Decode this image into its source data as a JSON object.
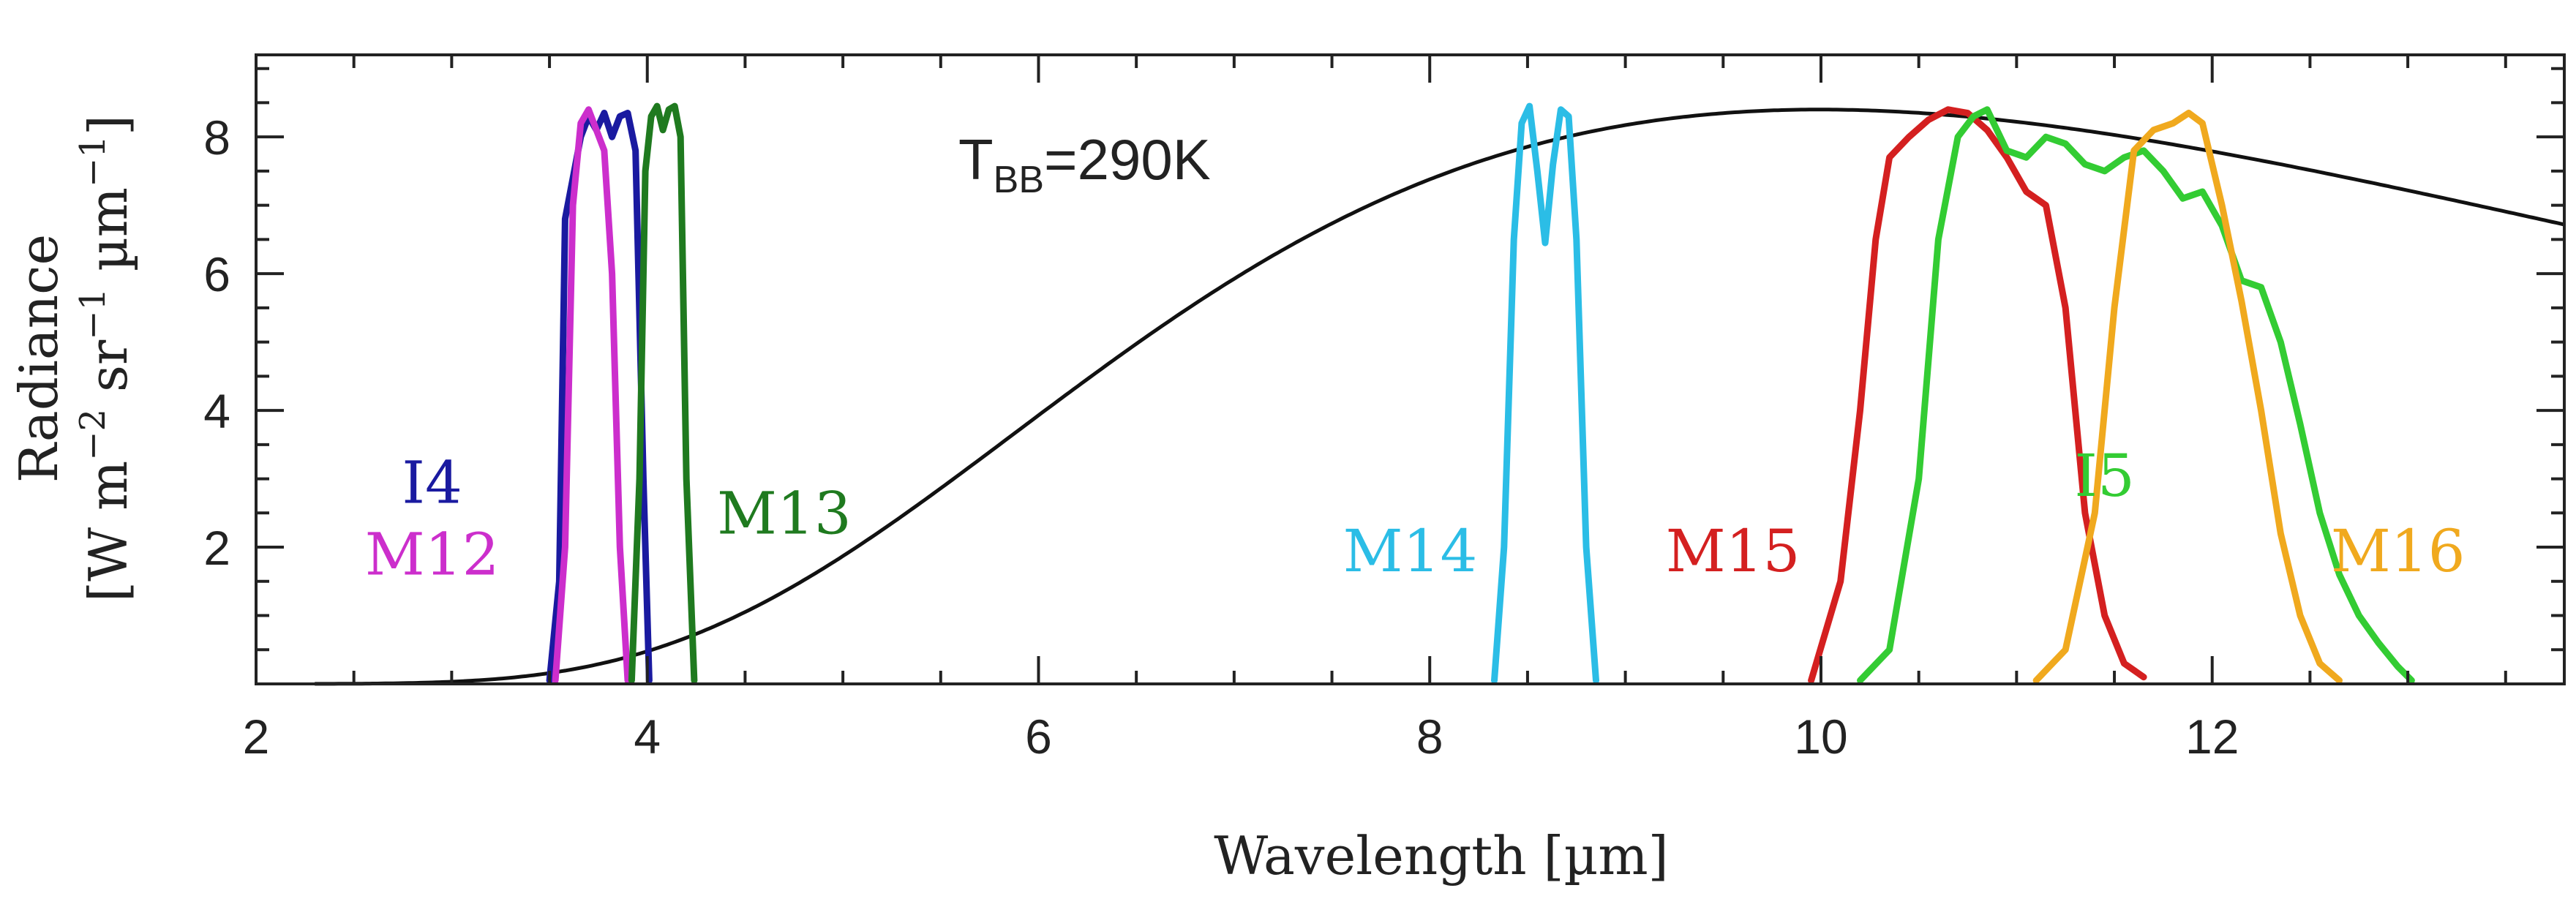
{
  "chart_data": {
    "type": "line",
    "title": "",
    "xlabel": "Wavelength [µm]",
    "ylabel_line1": "Radiance",
    "ylabel_line2": "[W m",
    "ylabel_line2_sup": "−2",
    "ylabel_line2_mid": " sr",
    "ylabel_line2_sup2": "−1",
    "ylabel_line2_end": " µm",
    "ylabel_line2_sup3": "−1",
    "ylabel_line2_close": "]",
    "xlim": [
      2,
      13.8
    ],
    "ylim": [
      0,
      9.2
    ],
    "xticks": [
      2,
      4,
      6,
      8,
      10,
      12
    ],
    "yticks": [
      2,
      4,
      6,
      8
    ],
    "annotation": {
      "text_main": "T",
      "text_sub": "BB",
      "text_rest": "=290K",
      "x": 5.5,
      "y": 7.5
    },
    "blackbody": {
      "name": "Blackbody 290 K",
      "color": "#111111",
      "temperature_k": 290,
      "peak_value": 8.4
    },
    "series": [
      {
        "name": "I4",
        "label": "I4",
        "color": "#1a1aa0",
        "label_x": 2.9,
        "label_y": 2.65,
        "x": [
          3.5,
          3.55,
          3.58,
          3.62,
          3.66,
          3.7,
          3.74,
          3.78,
          3.82,
          3.86,
          3.9,
          3.94,
          3.98,
          4.01
        ],
        "y": [
          0.05,
          1.5,
          6.8,
          7.4,
          8.0,
          8.3,
          8.1,
          8.35,
          8.0,
          8.3,
          8.35,
          7.8,
          3.0,
          0.05
        ]
      },
      {
        "name": "M12",
        "label": "M12",
        "color": "#cc2ecc",
        "label_x": 2.9,
        "label_y": 1.6,
        "x": [
          3.53,
          3.58,
          3.62,
          3.66,
          3.7,
          3.74,
          3.78,
          3.82,
          3.86,
          3.9
        ],
        "y": [
          0.05,
          2.0,
          7.0,
          8.2,
          8.4,
          8.1,
          7.8,
          6.0,
          2.0,
          0.05
        ]
      },
      {
        "name": "M13",
        "label": "M13",
        "color": "#1f7a1f",
        "label_x": 4.7,
        "label_y": 2.2,
        "x": [
          3.92,
          3.96,
          3.99,
          4.02,
          4.05,
          4.08,
          4.11,
          4.14,
          4.17,
          4.2,
          4.24
        ],
        "y": [
          0.05,
          3.0,
          7.5,
          8.3,
          8.45,
          8.1,
          8.4,
          8.45,
          8.0,
          3.0,
          0.05
        ]
      },
      {
        "name": "M14",
        "label": "M14",
        "color": "#2bbde6",
        "label_x": 7.9,
        "label_y": 1.65,
        "x": [
          8.33,
          8.38,
          8.43,
          8.47,
          8.51,
          8.55,
          8.59,
          8.63,
          8.67,
          8.71,
          8.75,
          8.8,
          8.85
        ],
        "y": [
          0.05,
          2.0,
          6.5,
          8.2,
          8.45,
          7.5,
          6.45,
          7.6,
          8.4,
          8.3,
          6.5,
          2.0,
          0.05
        ]
      },
      {
        "name": "M15",
        "label": "M15",
        "color": "#d42020",
        "label_x": 9.55,
        "label_y": 1.65,
        "x": [
          9.95,
          10.1,
          10.2,
          10.28,
          10.35,
          10.45,
          10.55,
          10.65,
          10.75,
          10.85,
          10.95,
          11.05,
          11.15,
          11.25,
          11.35,
          11.45,
          11.55,
          11.65
        ],
        "y": [
          0.05,
          1.5,
          4.0,
          6.5,
          7.7,
          8.0,
          8.25,
          8.4,
          8.35,
          8.1,
          7.7,
          7.2,
          7.0,
          5.5,
          2.5,
          1.0,
          0.3,
          0.1
        ]
      },
      {
        "name": "I5",
        "label": "I5",
        "color": "#33cc33",
        "label_x": 11.45,
        "label_y": 2.75,
        "x": [
          10.2,
          10.35,
          10.5,
          10.6,
          10.7,
          10.78,
          10.85,
          10.95,
          11.05,
          11.15,
          11.25,
          11.35,
          11.45,
          11.55,
          11.65,
          11.75,
          11.85,
          11.95,
          12.05,
          12.15,
          12.25,
          12.35,
          12.45,
          12.55,
          12.65,
          12.75,
          12.85,
          12.95,
          13.02
        ],
        "y": [
          0.05,
          0.5,
          3.0,
          6.5,
          8.0,
          8.3,
          8.4,
          7.8,
          7.7,
          8.0,
          7.9,
          7.6,
          7.5,
          7.7,
          7.8,
          7.5,
          7.1,
          7.2,
          6.7,
          5.9,
          5.8,
          5.0,
          3.8,
          2.5,
          1.6,
          1.0,
          0.6,
          0.25,
          0.05
        ]
      },
      {
        "name": "M16",
        "label": "M16",
        "color": "#f0a91e",
        "label_x": 12.95,
        "label_y": 1.65,
        "x": [
          11.1,
          11.25,
          11.4,
          11.5,
          11.6,
          11.7,
          11.8,
          11.88,
          11.95,
          12.05,
          12.15,
          12.25,
          12.35,
          12.45,
          12.55,
          12.65
        ],
        "y": [
          0.05,
          0.5,
          2.5,
          5.5,
          7.8,
          8.1,
          8.2,
          8.35,
          8.2,
          7.0,
          5.6,
          4.0,
          2.2,
          1.0,
          0.3,
          0.05
        ]
      }
    ]
  }
}
